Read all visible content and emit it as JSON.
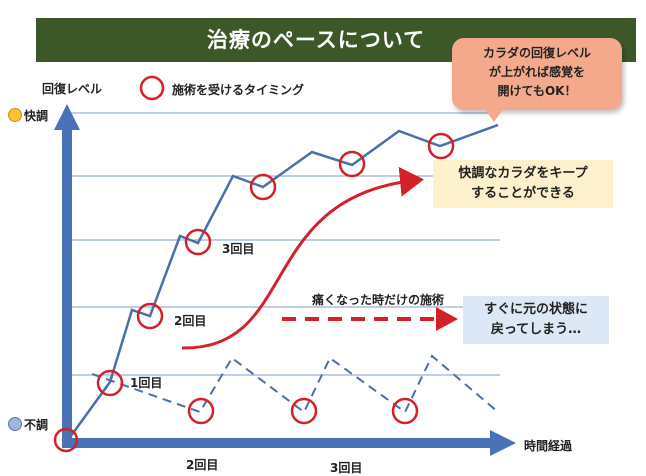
{
  "title": "治療のペースについて",
  "axes": {
    "y_label": "回復レベル",
    "x_label": "時間経過",
    "top_label": "快調",
    "bottom_label": "不調"
  },
  "legend": {
    "label": "施術を受けるタイミング",
    "icon": "red-circle-icon"
  },
  "callout": {
    "line1": "カラダの回復レベル",
    "line2": "が上がれば感覚を",
    "line3": "開けてもOK！"
  },
  "good_box": {
    "line1": "快調なカラダをキープ",
    "line2": "することができる"
  },
  "bad_box": {
    "line1": "すぐに元の状態に",
    "line2": "戻ってしまう…"
  },
  "bad_arrow_label": "痛くなった時だけの施術",
  "visit_labels": {
    "solid_1": "1回目",
    "solid_2": "2回目",
    "solid_3": "3回目",
    "dashed_2": "2回目",
    "dashed_3": "3回目"
  },
  "colors": {
    "title_bg": "#3d5828",
    "axis": "#4a72b8",
    "line": "#4a6faa",
    "circle": "#d42127",
    "callout_bg": "#f5a98c",
    "good_box_bg": "#fdf0cc",
    "bad_box_bg": "#dce8f5"
  }
}
